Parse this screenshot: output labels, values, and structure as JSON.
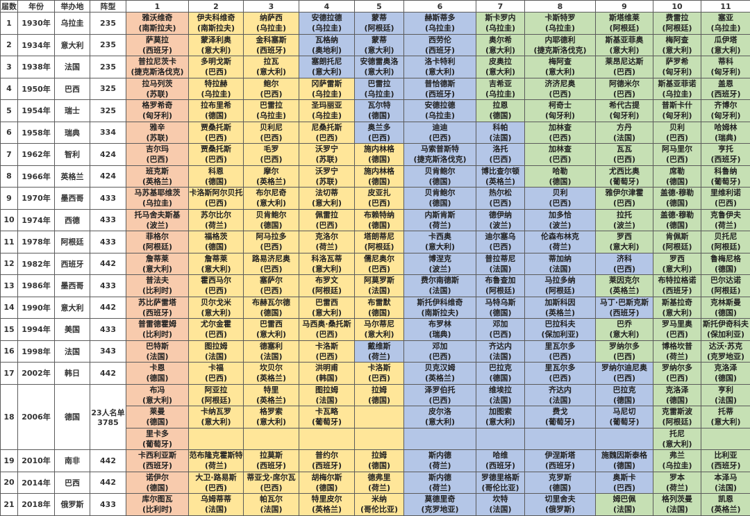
{
  "headers": [
    "届数",
    "年份",
    "举办地",
    "阵型",
    "1",
    "2",
    "3",
    "4",
    "5",
    "6",
    "7",
    "8",
    "9",
    "10",
    "11"
  ],
  "position_colors": {
    "G": "#f8cbad",
    "D": "#ffe699",
    "M": "#b4c6e7",
    "F": "#c6e0b4"
  },
  "rows": [
    {
      "no": "1",
      "year": "1930年",
      "host": "乌拉圭",
      "formation": "235",
      "roles": "GDDMMMFFFFF",
      "lines": [
        [
          [
            "雅沃维奇",
            "(南斯拉夫)"
          ],
          [
            "伊夫科维奇",
            "(南斯拉夫)"
          ],
          [
            "纳萨西",
            "(乌拉圭)"
          ],
          [
            "安德拉德",
            "(乌拉圭)"
          ],
          [
            "蒙蒂",
            "(阿根廷)"
          ],
          [
            "赫斯蒂多",
            "(乌拉圭)"
          ],
          [
            "斯卡罗内",
            "(乌拉圭)"
          ],
          [
            "卡斯特罗",
            "(乌拉圭)"
          ],
          [
            "斯塔维莱",
            "(阿根廷)"
          ],
          [
            "费雷拉",
            "(阿根廷)"
          ],
          [
            "塞亚",
            "(乌拉圭)"
          ]
        ]
      ]
    },
    {
      "no": "2",
      "year": "1934年",
      "host": "意大利",
      "formation": "235",
      "roles": "GDDMMMFFFFF",
      "lines": [
        [
          [
            "萨莫拉",
            "(西班牙)"
          ],
          [
            "蒙泽利奥",
            "(意大利)"
          ],
          [
            "金科塞斯",
            "(西班牙)"
          ],
          [
            "瓦格纳",
            "(奥地利)"
          ],
          [
            "蒙蒂",
            "(意大利)"
          ],
          [
            "西劳伦",
            "(西班牙)"
          ],
          [
            "奥尔希",
            "(意大利)"
          ],
          [
            "内耶德利",
            "(捷克斯洛伐克)"
          ],
          [
            "斯基亚菲奥",
            "(意大利)"
          ],
          [
            "梅阿查",
            "(意大利)"
          ],
          [
            "瓜伊塔",
            "(意大利)"
          ]
        ]
      ]
    },
    {
      "no": "3",
      "year": "1938年",
      "host": "法国",
      "formation": "235",
      "roles": "GDDMMMFFFFF",
      "lines": [
        [
          [
            "普拉尼茨卡",
            "(捷克斯洛伐克)"
          ],
          [
            "多明戈斯",
            "(巴西)"
          ],
          [
            "拉瓦",
            "(意大利)"
          ],
          [
            "塞朗托尼",
            "(意大利)"
          ],
          [
            "安德雷奥洛",
            "(意大利)"
          ],
          [
            "洛卡特利",
            "(意大利)"
          ],
          [
            "皮奥拉",
            "(意大利)"
          ],
          [
            "梅阿查",
            "(意大利)"
          ],
          [
            "莱昂尼达斯",
            "(巴西)"
          ],
          [
            "萨罗希",
            "(匈牙利)"
          ],
          [
            "蒂科",
            "(匈牙利)"
          ]
        ]
      ]
    },
    {
      "no": "4",
      "year": "1950年",
      "host": "巴西",
      "formation": "325",
      "roles": "GDDDMMFFFFF",
      "lines": [
        [
          [
            "拉马列茨",
            "(苏联)"
          ],
          [
            "特拉赫",
            "(乌拉圭)"
          ],
          [
            "鲍尔",
            "(巴西)"
          ],
          [
            "冈萨雷斯",
            "(乌拉圭)"
          ],
          [
            "巴雷拉",
            "(乌拉圭)"
          ],
          [
            "普恰德斯",
            "(西班牙)"
          ],
          [
            "吉希亚",
            "(乌拉圭)"
          ],
          [
            "济济尼奥",
            "(巴西)"
          ],
          [
            "阿德米尔",
            "(巴西)"
          ],
          [
            "斯基亚菲诺",
            "(乌拉圭)"
          ],
          [
            "盖恩",
            "(西班牙)"
          ]
        ]
      ]
    },
    {
      "no": "5",
      "year": "1954年",
      "host": "瑞士",
      "formation": "325",
      "roles": "GDDDMMFFFFF",
      "lines": [
        [
          [
            "格罗希奇",
            "(匈牙利)"
          ],
          [
            "拉布里希",
            "(德国)"
          ],
          [
            "巴雷拉",
            "(乌拉圭)"
          ],
          [
            "圣玛丽亚",
            "(乌拉圭)"
          ],
          [
            "瓦尔特",
            "(德国)"
          ],
          [
            "安德拉德",
            "(乌拉圭)"
          ],
          [
            "拉恩",
            "(德国)"
          ],
          [
            "柯奇士",
            "(匈牙利)"
          ],
          [
            "希代古提",
            "(匈牙利)"
          ],
          [
            "普斯卡什",
            "(匈牙利)"
          ],
          [
            "齐博尔",
            "(匈牙利)"
          ]
        ]
      ]
    },
    {
      "no": "6",
      "year": "1958年",
      "host": "瑞典",
      "formation": "334",
      "roles": "GDDDMMMFFFF",
      "lines": [
        [
          [
            "雅辛",
            "(苏联)"
          ],
          [
            "贾桑托斯",
            "(巴西)"
          ],
          [
            "贝利尼",
            "(巴西)"
          ],
          [
            "尼桑托斯",
            "(巴西)"
          ],
          [
            "奥兰多",
            "(巴西)"
          ],
          [
            "迪迪",
            "(巴西)"
          ],
          [
            "科帕",
            "(法国)"
          ],
          [
            "加林查",
            "(巴西)"
          ],
          [
            "方丹",
            "(法国)"
          ],
          [
            "贝利",
            "(巴西)"
          ],
          [
            "哈姆林",
            "(瑞典)"
          ]
        ]
      ]
    },
    {
      "no": "7",
      "year": "1962年",
      "host": "智利",
      "formation": "424",
      "roles": "GDDDDMMFFFF",
      "lines": [
        [
          [
            "吉尔玛",
            "(巴西)"
          ],
          [
            "贾桑托斯",
            "(巴西)"
          ],
          [
            "毛罗",
            "(巴西)"
          ],
          [
            "沃罗宁",
            "(苏联)"
          ],
          [
            "施内林格",
            "(德国)"
          ],
          [
            "马索普斯特",
            "(捷克斯洛伐克)"
          ],
          [
            "洛托",
            "(巴西)"
          ],
          [
            "加林查",
            "(巴西)"
          ],
          [
            "瓦瓦",
            "(巴西)"
          ],
          [
            "阿马里尔",
            "(巴西)"
          ],
          [
            "亨托",
            "(西班牙)"
          ]
        ]
      ]
    },
    {
      "no": "8",
      "year": "1966年",
      "host": "英格兰",
      "formation": "424",
      "roles": "GDDDDMMFFFF",
      "lines": [
        [
          [
            "班克斯",
            "(英格兰)"
          ],
          [
            "科恩",
            "(德国)"
          ],
          [
            "摩尔",
            "(英格兰)"
          ],
          [
            "沃罗宁",
            "(苏联)"
          ],
          [
            "施内林格",
            "(德国)"
          ],
          [
            "贝肯鲍尔",
            "(德国)"
          ],
          [
            "博比查尔顿",
            "(英格兰)"
          ],
          [
            "哈勒",
            "(德国)"
          ],
          [
            "尤西比奥",
            "(葡萄牙)"
          ],
          [
            "席勒",
            "(德国)"
          ],
          [
            "科鲁纳",
            "(葡萄牙)"
          ]
        ]
      ]
    },
    {
      "no": "9",
      "year": "1970年",
      "host": "墨西哥",
      "formation": "433",
      "roles": "GDDDDMMMFFF",
      "lines": [
        [
          [
            "马苏基耶维茨",
            "(乌拉圭)"
          ],
          [
            "卡洛斯阿尔贝托",
            "(巴西)"
          ],
          [
            "布尔尼奇",
            "(意大利)"
          ],
          [
            "法切蒂",
            "(意大利)"
          ],
          [
            "皮亚扎",
            "(巴西)"
          ],
          [
            "贝肯鲍尔",
            "(德国)"
          ],
          [
            "热尔松",
            "(巴西)"
          ],
          [
            "贝利",
            "(巴西)"
          ],
          [
            "雅伊尔津霍",
            "(巴西)"
          ],
          [
            "盖德·穆勒",
            "(德国)"
          ],
          [
            "里维利诺",
            "(巴西)"
          ]
        ]
      ]
    },
    {
      "no": "10",
      "year": "1974年",
      "host": "西德",
      "formation": "433",
      "roles": "GDDDDMMMFFF",
      "lines": [
        [
          [
            "托马舍夫斯基",
            "(波兰)"
          ],
          [
            "苏尔比尔",
            "(荷兰)"
          ],
          [
            "贝肯鲍尔",
            "(德国)"
          ],
          [
            "佩雷拉",
            "(巴西)"
          ],
          [
            "布赖特纳",
            "(德国)"
          ],
          [
            "内斯肯斯",
            "(荷兰)"
          ],
          [
            "德伊纳",
            "(波兰)"
          ],
          [
            "加多恰",
            "(波兰)"
          ],
          [
            "拉托",
            "(波兰)"
          ],
          [
            "盖德·穆勒",
            "(德国)"
          ],
          [
            "克鲁伊夫",
            "(荷兰)"
          ]
        ]
      ]
    },
    {
      "no": "11",
      "year": "1978年",
      "host": "阿根廷",
      "formation": "433",
      "roles": "GDDDDMMMFFF",
      "lines": [
        [
          [
            "菲格尔",
            "(阿根廷)"
          ],
          [
            "福格茨",
            "(德国)"
          ],
          [
            "阿马拉多",
            "(巴西)"
          ],
          [
            "克洛尔",
            "(荷兰)"
          ],
          [
            "塔朗蒂尼",
            "(阿根廷)"
          ],
          [
            "卡西奥",
            "(意大利)"
          ],
          [
            "迪尔塞乌",
            "(巴西)"
          ],
          [
            "伦森布林克",
            "(荷兰)"
          ],
          [
            "罗西",
            "(意大利)"
          ],
          [
            "肯佩斯",
            "(阿根廷)"
          ],
          [
            "贝托尼",
            "(阿根廷)"
          ]
        ]
      ]
    },
    {
      "no": "12",
      "year": "1982年",
      "host": "西班牙",
      "formation": "442",
      "roles": "GDDDDMMMMFF",
      "lines": [
        [
          [
            "詹蒂莱",
            "(意大利)"
          ],
          [
            "詹蒂莱",
            "(意大利)"
          ],
          [
            "路易济尼奥",
            "(巴西)"
          ],
          [
            "科洛瓦蒂",
            "(意大利)"
          ],
          [
            "儒尼奥尔",
            "(巴西)"
          ],
          [
            "博涅克",
            "(波兰)"
          ],
          [
            "普拉蒂尼",
            "(法国)"
          ],
          [
            "蒂加纳",
            "(法国)"
          ],
          [
            "济科",
            "(巴西)"
          ],
          [
            "罗西",
            "(意大利)"
          ],
          [
            "鲁梅尼格",
            "(德国)"
          ]
        ]
      ]
    },
    {
      "no": "13",
      "year": "1986年",
      "host": "墨西哥",
      "formation": "433",
      "roles": "GDDDDMMMFFF",
      "lines": [
        [
          [
            "普法夫",
            "(比利时)"
          ],
          [
            "霍西马尔",
            "(巴西)"
          ],
          [
            "塞萨尔",
            "(巴西)"
          ],
          [
            "布罗文",
            "(阿根廷)"
          ],
          [
            "阿莫罗斯",
            "(法国)"
          ],
          [
            "费尔南德斯",
            "(法国)"
          ],
          [
            "布鲁查加",
            "(阿根廷)"
          ],
          [
            "马拉多纳",
            "(阿根廷)"
          ],
          [
            "莱因克尔",
            "(英格兰)"
          ],
          [
            "布特拉格诺",
            "(西班牙)"
          ],
          [
            "巴尔达诺",
            "(阿根廷)"
          ]
        ]
      ]
    },
    {
      "no": "14",
      "year": "1990年",
      "host": "意大利",
      "formation": "442",
      "roles": "GDDDDMMMMFF",
      "lines": [
        [
          [
            "苏比萨雷塔",
            "(西班牙)"
          ],
          [
            "贝尔戈米",
            "(意大利)"
          ],
          [
            "布赫瓦尔德",
            "(德国)"
          ],
          [
            "巴雷西",
            "(意大利)"
          ],
          [
            "布雷默",
            "(德国)"
          ],
          [
            "斯托伊科维奇",
            "(南斯拉夫)"
          ],
          [
            "马特乌斯",
            "(德国)"
          ],
          [
            "加斯科因",
            "(英格兰)"
          ],
          [
            "马丁·巴斯克斯",
            "(西班牙)"
          ],
          [
            "斯基拉奇",
            "(意大利)"
          ],
          [
            "克林斯曼",
            "(德国)"
          ]
        ]
      ]
    },
    {
      "no": "15",
      "year": "1994年",
      "host": "美国",
      "formation": "433",
      "roles": "GDDDDMMMFFF",
      "lines": [
        [
          [
            "普雷德霍姆",
            "(比利时)"
          ],
          [
            "尤尔金霍",
            "(巴西)"
          ],
          [
            "巴雷西",
            "(意大利)"
          ],
          [
            "马西奥·桑托斯",
            "(巴西)"
          ],
          [
            "马尔蒂尼",
            "(意大利)"
          ],
          [
            "布罗林",
            "(瑞典)"
          ],
          [
            "邓加",
            "(巴西)"
          ],
          [
            "巴拉科夫",
            "(保加利亚)"
          ],
          [
            "巴乔",
            "(意大利)"
          ],
          [
            "罗马里奥",
            "(巴西)"
          ],
          [
            "斯托伊奇科夫",
            "(保加利亚)"
          ]
        ]
      ]
    },
    {
      "no": "16",
      "year": "1998年",
      "host": "法国",
      "formation": "343",
      "roles": "GDDDMMMMFFF",
      "lines": [
        [
          [
            "巴特斯",
            "(法国)"
          ],
          [
            "图拉姆",
            "(法国)"
          ],
          [
            "德塞利",
            "(法国)"
          ],
          [
            "卡洛斯",
            "(巴西)"
          ],
          [
            "戴维斯",
            "(荷兰)"
          ],
          [
            "邓加",
            "(巴西)"
          ],
          [
            "齐达内",
            "(法国)"
          ],
          [
            "里瓦尔多",
            "(巴西)"
          ],
          [
            "罗纳尔多",
            "(巴西)"
          ],
          [
            "博格坎普",
            "(荷兰)"
          ],
          [
            "达沃·苏克",
            "(克罗地亚)"
          ]
        ]
      ]
    },
    {
      "no": "17",
      "year": "2002年",
      "host": "韩日",
      "formation": "442",
      "roles": "GDDDDMMMMFF",
      "lines": [
        [
          [
            "卡恩",
            "(德国)"
          ],
          [
            "卡福",
            "(巴西)"
          ],
          [
            "坎贝尔",
            "(英格兰)"
          ],
          [
            "洪明甫",
            "(韩国)"
          ],
          [
            "卡洛斯",
            "(巴西)"
          ],
          [
            "贝克汉姆",
            "(英格兰)"
          ],
          [
            "巴拉克",
            "(德国)"
          ],
          [
            "里瓦尔多",
            "(巴西)"
          ],
          [
            "罗纳尔迪尼奥",
            "(巴西)"
          ],
          [
            "罗纳尔多",
            "(巴西)"
          ],
          [
            "克洛泽",
            "(德国)"
          ]
        ]
      ]
    },
    {
      "no": "18",
      "year": "2006年",
      "host": "德国",
      "formation_note": "23人名单",
      "formation": "3785",
      "roles": "GDDDDMMMMFF",
      "lines": [
        [
          [
            "布冯",
            "(意大利)"
          ],
          [
            "阿亚拉",
            "(阿根廷)"
          ],
          [
            "特里",
            "(英格兰)"
          ],
          [
            "图拉姆",
            "(法国)"
          ],
          [
            "拉姆",
            "(德国)"
          ],
          [
            "泽罗伯托",
            "(巴西)"
          ],
          [
            "维埃拉",
            "(法国)"
          ],
          [
            "齐达内",
            "(法国)"
          ],
          [
            "巴拉克",
            "(德国)"
          ],
          [
            "克洛泽",
            "(德国)"
          ],
          [
            "亨利",
            "(法国)"
          ]
        ],
        [
          [
            "莱曼",
            "(德国)"
          ],
          [
            "卡纳瓦罗",
            "(意大利)"
          ],
          [
            "格罗索",
            "(意大利)"
          ],
          [
            "卡瓦略",
            "(葡萄牙)"
          ],
          null,
          [
            "皮尔洛",
            "(意大利)"
          ],
          [
            "加图索",
            "(意大利)"
          ],
          [
            "费戈",
            "(葡萄牙)"
          ],
          [
            "马尼切",
            "(葡萄牙)"
          ],
          [
            "克雷斯波",
            "(阿根廷)"
          ],
          [
            "托蒂",
            "(意大利)"
          ]
        ],
        [
          [
            "里卡多",
            "(葡萄牙)"
          ],
          null,
          null,
          null,
          null,
          null,
          null,
          null,
          null,
          [
            "托尼",
            "(意大利)"
          ],
          null
        ]
      ]
    },
    {
      "no": "19",
      "year": "2010年",
      "host": "南非",
      "formation": "442",
      "roles": "GDDDDMMMMFF",
      "lines": [
        [
          [
            "卡西利亚斯",
            "(西班牙)"
          ],
          [
            "范布隆克霍斯特",
            "(荷兰)"
          ],
          [
            "拉莫斯",
            "(西班牙)"
          ],
          [
            "普约尔",
            "(西班牙)"
          ],
          [
            "拉姆",
            "(德国)"
          ],
          [
            "斯内德",
            "(荷兰)"
          ],
          [
            "哈维",
            "(西班牙)"
          ],
          [
            "伊涅斯塔",
            "(西班牙)"
          ],
          [
            "施魏因斯泰格",
            "(德国)"
          ],
          [
            "弗兰",
            "(乌拉圭)"
          ],
          [
            "比利亚",
            "(西班牙)"
          ]
        ]
      ]
    },
    {
      "no": "20",
      "year": "2014年",
      "host": "巴西",
      "formation": "442",
      "roles": "GDDDDMMMMFF",
      "lines": [
        [
          [
            "诺伊尔",
            "(德国)"
          ],
          [
            "大卫·路易斯",
            "(巴西)"
          ],
          [
            "蒂亚戈·席尔瓦",
            "(巴西)"
          ],
          [
            "胡梅尔斯",
            "(德国)"
          ],
          [
            "德弗里",
            "(荷兰)"
          ],
          [
            "斯内德",
            "(荷兰)"
          ],
          [
            "罗德里格斯",
            "(哥伦比亚)"
          ],
          [
            "克罗斯",
            "(德国)"
          ],
          [
            "奥斯卡",
            "(巴西)"
          ],
          [
            "罗本",
            "(荷兰)"
          ],
          [
            "本泽马",
            "(法国)"
          ]
        ]
      ]
    },
    {
      "no": "21",
      "year": "2018年",
      "host": "俄罗斯",
      "formation": "433",
      "roles": "GDDDDMMMFFF",
      "lines": [
        [
          [
            "库尔图瓦",
            "(比利时)"
          ],
          [
            "乌姆蒂蒂",
            "(法国)"
          ],
          [
            "帕瓦尔",
            "(法国)"
          ],
          [
            "特里皮尔",
            "(英格兰)"
          ],
          [
            "米纳",
            "(哥伦比亚)"
          ],
          [
            "莫德里奇",
            "(克罗地亚)"
          ],
          [
            "坎特",
            "(法国)"
          ],
          [
            "切里舍夫",
            "(俄罗斯)"
          ],
          [
            "姆巴佩",
            "(法国)"
          ],
          [
            "格列茨曼",
            "(法国)"
          ],
          [
            "凯恩",
            "(英格兰)"
          ]
        ]
      ]
    }
  ]
}
